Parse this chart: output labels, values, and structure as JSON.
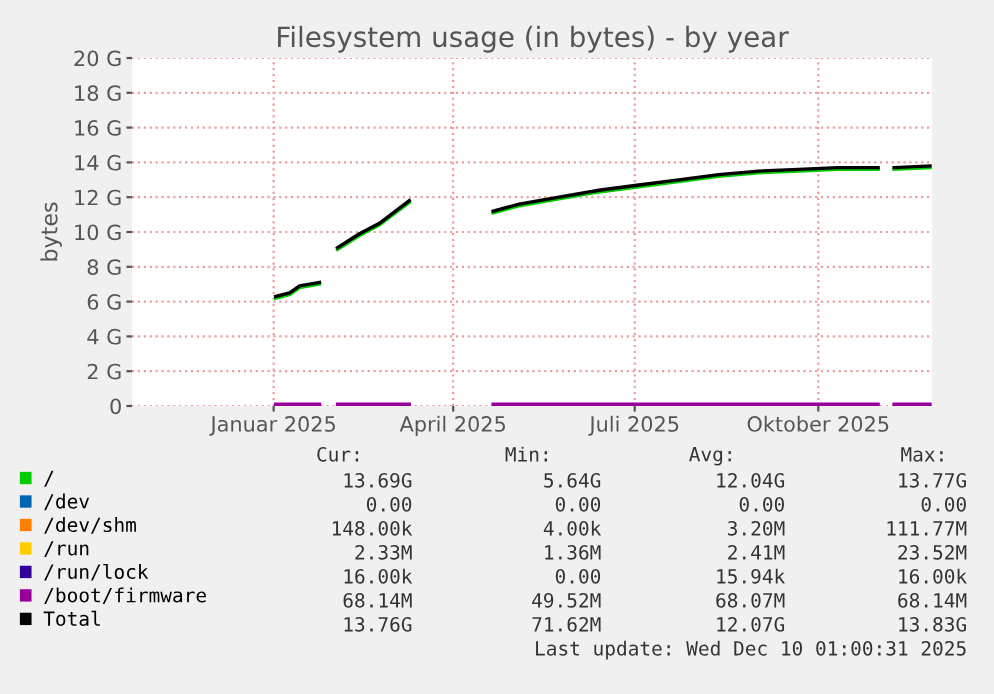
{
  "chart_data": {
    "type": "line",
    "title": "Filesystem usage (in bytes) - by year",
    "ylabel": "bytes",
    "x": [
      "2025-01-02",
      "2025-01-09",
      "2025-01-14",
      "2025-01-24",
      "2025-01-29",
      "2025-02-02",
      "2025-02-13",
      "2025-02-23",
      "2025-03-10",
      "2025-03-30",
      "2025-04-21",
      "2025-05-04",
      "2025-05-24",
      "2025-06-13",
      "2025-07-03",
      "2025-07-23",
      "2025-08-12",
      "2025-09-01",
      "2025-09-21",
      "2025-10-11",
      "2025-10-31",
      "2025-11-04",
      "2025-11-08",
      "2025-11-26"
    ],
    "series": [
      {
        "name": "/",
        "color": "#00cc00",
        "values": [
          6.2,
          6.4,
          6.8,
          7.0,
          null,
          9.0,
          9.8,
          10.4,
          11.7,
          null,
          11.1,
          11.5,
          11.9,
          12.3,
          12.6,
          12.9,
          13.2,
          13.4,
          13.5,
          13.6,
          13.6,
          null,
          13.6,
          13.7
        ]
      },
      {
        "name": "/dev",
        "color": "#0066b3",
        "values": [
          null,
          null,
          null,
          null,
          null,
          null,
          null,
          null,
          null,
          null,
          null,
          null,
          null,
          null,
          null,
          null,
          null,
          null,
          null,
          null,
          null,
          null,
          null,
          null
        ]
      },
      {
        "name": "/dev/shm",
        "color": "#ff8000",
        "values": [
          null,
          null,
          null,
          null,
          null,
          null,
          null,
          null,
          null,
          null,
          null,
          null,
          null,
          null,
          null,
          null,
          null,
          null,
          null,
          null,
          null,
          null,
          null,
          null
        ]
      },
      {
        "name": "/run",
        "color": "#ffcc00",
        "values": [
          null,
          null,
          null,
          null,
          null,
          null,
          null,
          null,
          null,
          null,
          null,
          null,
          null,
          null,
          null,
          null,
          null,
          null,
          null,
          null,
          null,
          null,
          null,
          null
        ]
      },
      {
        "name": "/run/lock",
        "color": "#330099",
        "values": [
          null,
          null,
          null,
          null,
          null,
          null,
          null,
          null,
          null,
          null,
          null,
          null,
          null,
          null,
          null,
          null,
          null,
          null,
          null,
          null,
          null,
          null,
          null,
          null
        ]
      },
      {
        "name": "/boot/firmware",
        "color": "#990099",
        "values": [
          0.1,
          0.1,
          0.1,
          0.1,
          null,
          0.1,
          0.1,
          0.1,
          0.1,
          null,
          0.1,
          0.1,
          0.1,
          0.1,
          0.1,
          0.1,
          0.1,
          0.1,
          0.1,
          0.1,
          0.1,
          null,
          0.1,
          0.1
        ]
      },
      {
        "name": "Total",
        "color": "#000000",
        "values": [
          6.3,
          6.5,
          6.9,
          7.1,
          null,
          9.1,
          9.9,
          10.5,
          11.8,
          null,
          11.2,
          11.6,
          12.0,
          12.4,
          12.7,
          13.0,
          13.3,
          13.5,
          13.6,
          13.7,
          13.7,
          null,
          13.7,
          13.8
        ]
      }
    ],
    "xlim": [
      "2024-10-22",
      "2025-11-27"
    ],
    "xticks": [
      {
        "value": "2025-01-01",
        "label": "Januar 2025"
      },
      {
        "value": "2025-04-01",
        "label": "April 2025"
      },
      {
        "value": "2025-07-01",
        "label": "Juli 2025"
      },
      {
        "value": "2025-10-01",
        "label": "Oktober 2025"
      }
    ],
    "ylim": [
      0,
      20
    ],
    "yticks": [
      0,
      {
        "value": 2,
        "label": "2 G"
      },
      {
        "value": 4,
        "label": "4 G"
      },
      {
        "value": 6,
        "label": "6 G"
      },
      {
        "value": 8,
        "label": "8 G"
      },
      {
        "value": 10,
        "label": "10 G"
      },
      {
        "value": 12,
        "label": "12 G"
      },
      {
        "value": 14,
        "label": "14 G"
      },
      {
        "value": 16,
        "label": "16 G"
      },
      {
        "value": 18,
        "label": "18 G"
      },
      {
        "value": 20,
        "label": "20 G"
      }
    ],
    "grid": true,
    "legend": "bottom",
    "marker": "none",
    "line_style": "solid",
    "annotations": [
      "Cur:",
      "Min:",
      "Avg:",
      "Max:",
      "13.69G",
      "5.64G",
      "12.04G",
      "13.77G",
      "0.00",
      "0.00",
      "0.00",
      "0.00",
      "148.00k",
      "4.00k",
      "3.20M",
      "111.77M",
      "2.33M",
      "1.36M",
      "2.41M",
      "23.52M",
      "16.00k",
      "0.00",
      "15.94k",
      "16.00k",
      "68.14M",
      "49.52M",
      "68.07M",
      "68.14M",
      "13.76G",
      "71.62M",
      "12.07G",
      "13.83G",
      "Last update: Wed Dec 10 01:00:31 2025"
    ]
  }
}
